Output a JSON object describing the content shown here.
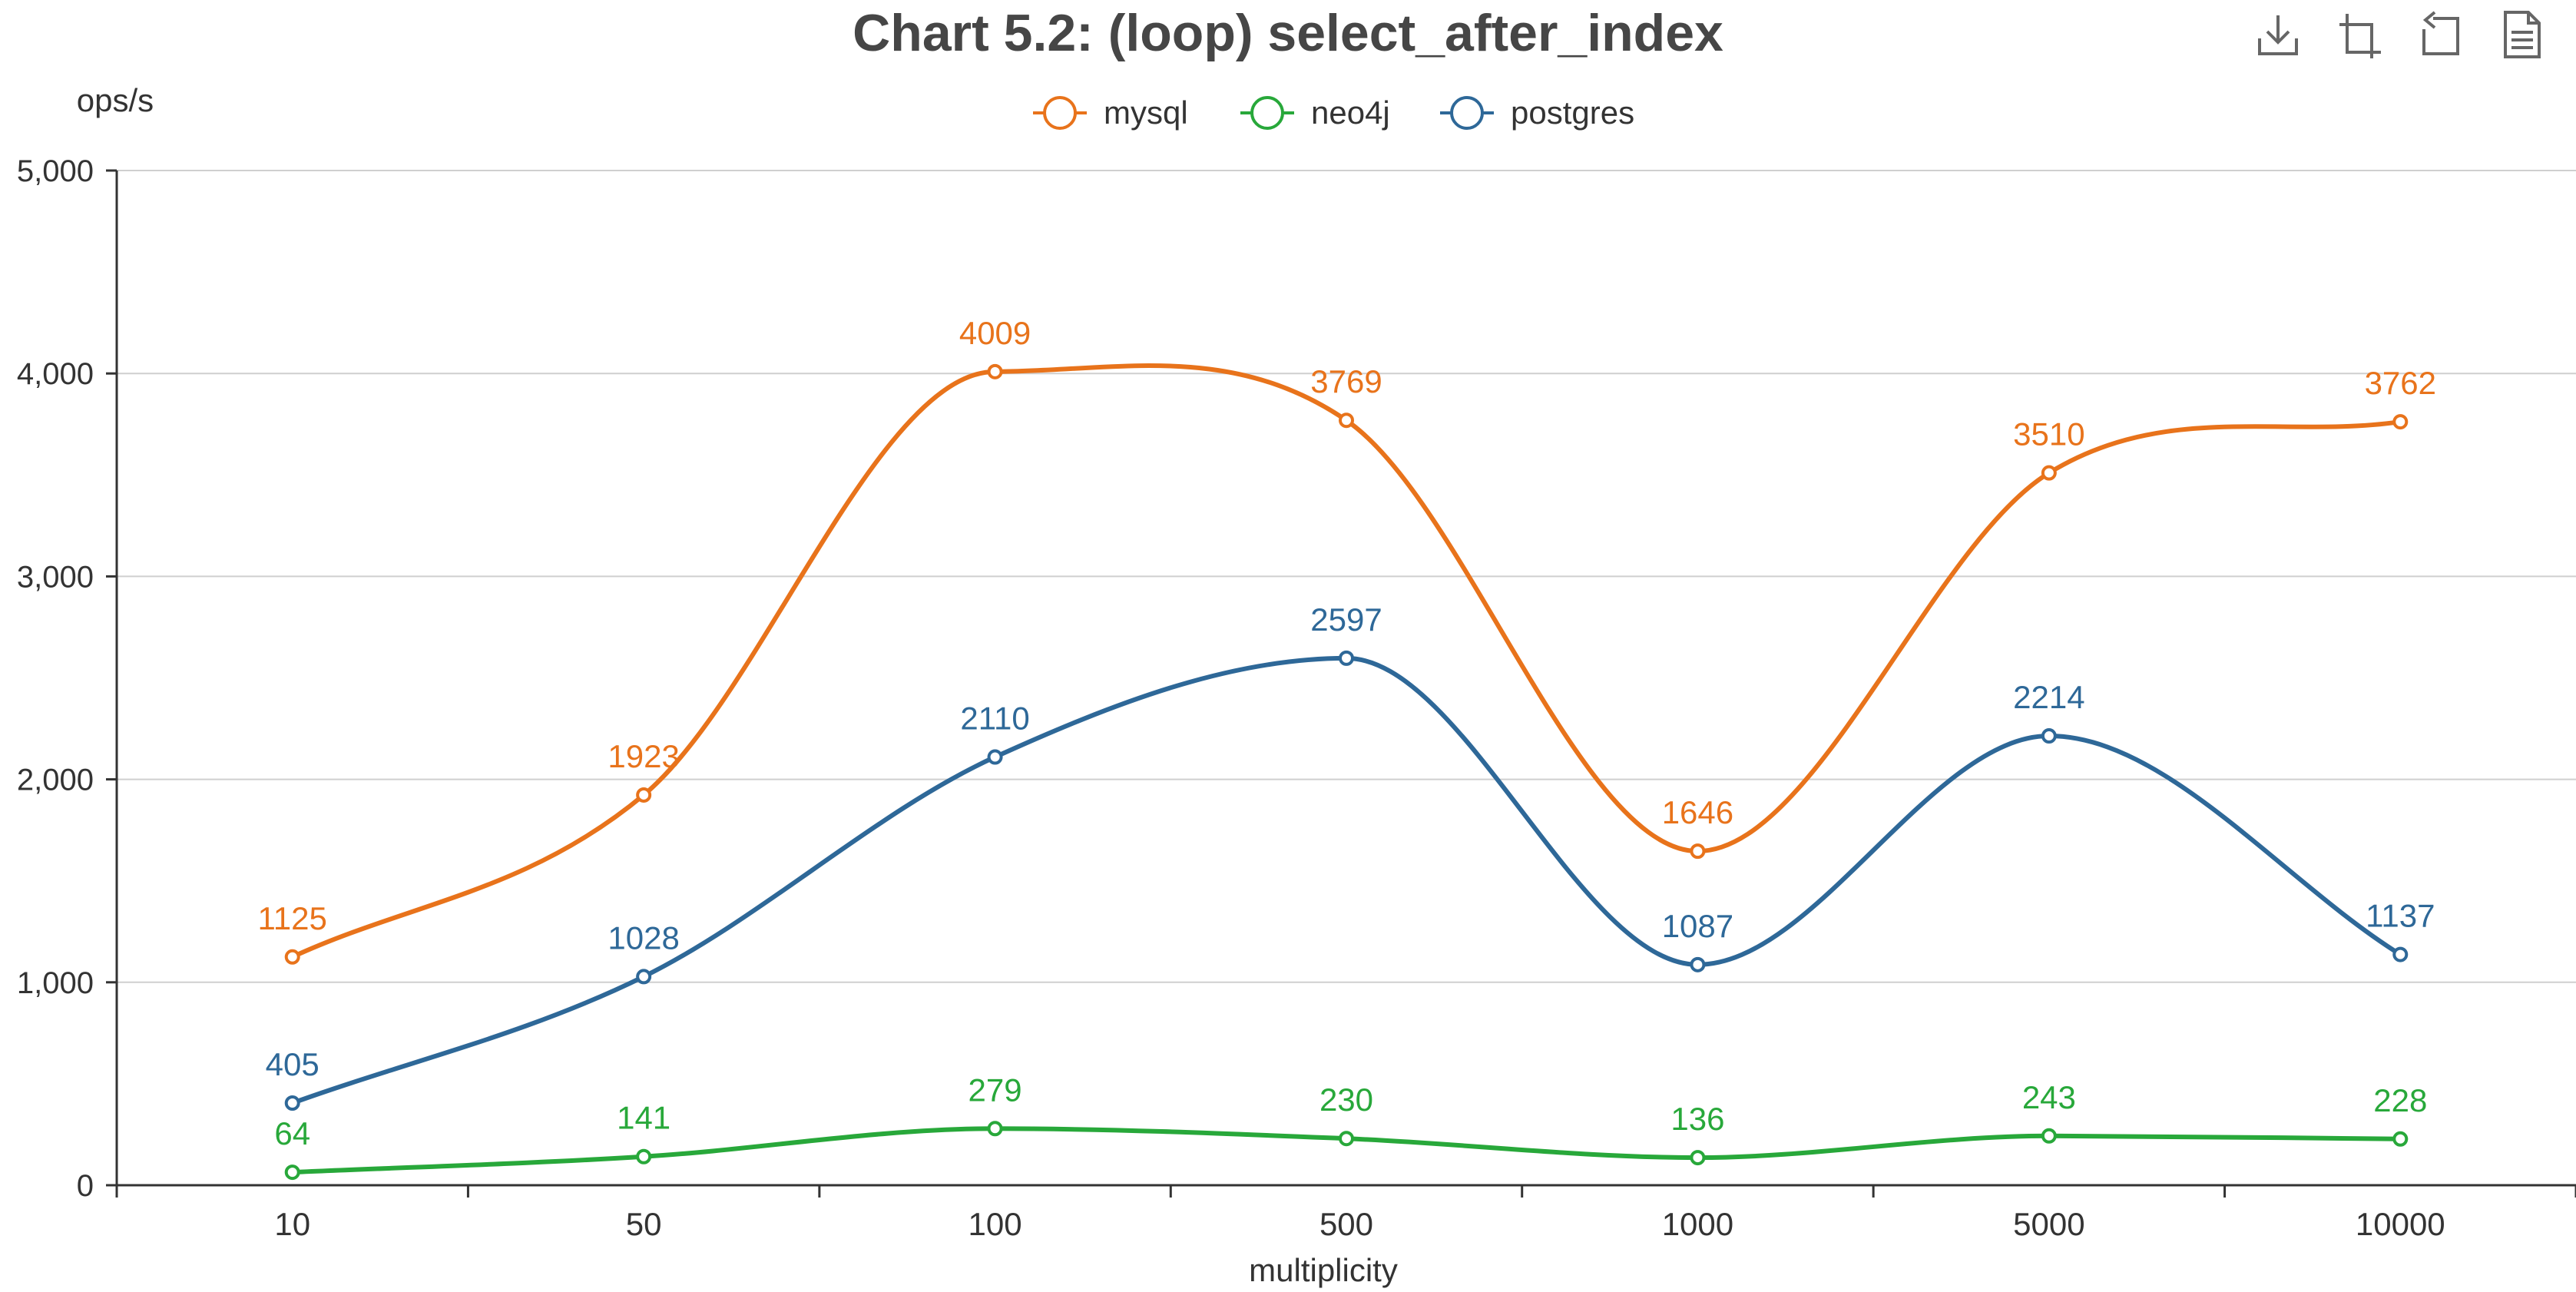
{
  "toolbox": {
    "icons": [
      "download-icon",
      "crop-icon",
      "undo-icon",
      "data-view-icon"
    ]
  },
  "chart_data": {
    "type": "line",
    "title": "Chart 5.2: (loop) select_after_index",
    "xlabel": "multiplicity",
    "ylabel": "ops/s",
    "categories": [
      "10",
      "50",
      "100",
      "500",
      "1000",
      "5000",
      "10000"
    ],
    "ylim": [
      0,
      5000
    ],
    "yticks": [
      "0",
      "1,000",
      "2,000",
      "3,000",
      "4,000",
      "5,000"
    ],
    "grid": true,
    "smooth": true,
    "legend_position": "top-center",
    "series": [
      {
        "name": "mysql",
        "color": "#e8731b",
        "values": [
          1125,
          1923,
          4009,
          3769,
          1646,
          3510,
          3762
        ]
      },
      {
        "name": "neo4j",
        "color": "#28a83a",
        "values": [
          64,
          141,
          279,
          230,
          136,
          243,
          228
        ]
      },
      {
        "name": "postgres",
        "color": "#2e6898",
        "values": [
          405,
          1028,
          2110,
          2597,
          1087,
          2214,
          1137
        ]
      }
    ]
  }
}
